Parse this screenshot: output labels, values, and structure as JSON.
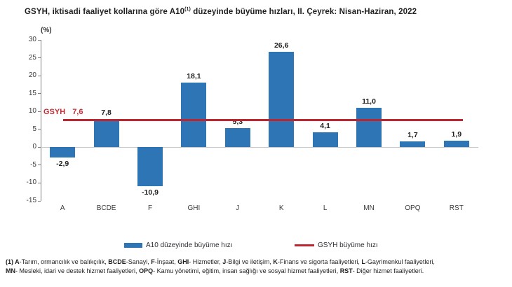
{
  "title": {
    "pre": "GSYH, iktisadi faaliyet kollarına göre A10",
    "sup": "(1)",
    "post": " düzeyinde büyüme hızları, II. Çeyrek: Nisan-Haziran, 2022"
  },
  "chart_data": {
    "type": "bar",
    "unit_label": "(%)",
    "categories": [
      "A",
      "BCDE",
      "F",
      "GHI",
      "J",
      "K",
      "L",
      "MN",
      "OPQ",
      "RST"
    ],
    "values": [
      -2.9,
      7.8,
      -10.9,
      18.1,
      5.3,
      26.6,
      4.1,
      11.0,
      1.7,
      1.9
    ],
    "value_labels": [
      "-2,9",
      "7,8",
      "-10,9",
      "18,1",
      "5,3",
      "26,6",
      "4,1",
      "11,0",
      "1,7",
      "1,9"
    ],
    "series": [
      {
        "name": "A10 düzeyinde büyüme hızı",
        "type": "bar",
        "values": [
          -2.9,
          7.8,
          -10.9,
          18.1,
          5.3,
          26.6,
          4.1,
          11.0,
          1.7,
          1.9
        ]
      },
      {
        "name": "GSYH büyüme hızı",
        "type": "line",
        "values": [
          7.6,
          7.6,
          7.6,
          7.6,
          7.6,
          7.6,
          7.6,
          7.6,
          7.6,
          7.6
        ]
      }
    ],
    "reference_line": {
      "label": "GSYH",
      "value_label": "7,6",
      "value": 7.6,
      "color": "#bb2630"
    },
    "ylim": [
      -15,
      30
    ],
    "yticks": [
      30,
      25,
      20,
      15,
      10,
      5,
      0,
      -5,
      -10,
      -15
    ],
    "grid": "zero-line-only",
    "bar_color": "#2e75b6",
    "legend_position": "bottom",
    "legend": [
      {
        "label": "A10 düzeyinde büyüme hızı",
        "swatch": "bar",
        "color": "#2e75b6"
      },
      {
        "label": "GSYH büyüme hızı",
        "swatch": "line",
        "color": "#bb2630"
      }
    ]
  },
  "footnote": {
    "lines": [
      [
        {
          "t": "(1) A",
          "b": true
        },
        {
          "t": "-Tarım, ormancılık ve balıkçılık, ",
          "b": false
        },
        {
          "t": "BCDE",
          "b": true
        },
        {
          "t": "-Sanayi, ",
          "b": false
        },
        {
          "t": "F",
          "b": true
        },
        {
          "t": "-İnşaat, ",
          "b": false
        },
        {
          "t": "GHI",
          "b": true
        },
        {
          "t": "- Hizmetler, ",
          "b": false
        },
        {
          "t": "J",
          "b": true
        },
        {
          "t": "-Bilgi ve iletişim, ",
          "b": false
        },
        {
          "t": "K",
          "b": true
        },
        {
          "t": "-Finans ve sigorta faaliyetleri, ",
          "b": false
        },
        {
          "t": "L",
          "b": true
        },
        {
          "t": "-Gayrimenkul faaliyetleri,",
          "b": false
        }
      ],
      [
        {
          "t": "MN",
          "b": true
        },
        {
          "t": "- Mesleki, idari ve destek hizmet faaliyetleri, ",
          "b": false
        },
        {
          "t": "OPQ",
          "b": true
        },
        {
          "t": "- Kamu yönetimi, eğitim, insan sağlığı ve sosyal hizmet faaliyetleri, ",
          "b": false
        },
        {
          "t": "RST",
          "b": true
        },
        {
          "t": "- Diğer hizmet faaliyetleri.",
          "b": false
        }
      ]
    ]
  }
}
